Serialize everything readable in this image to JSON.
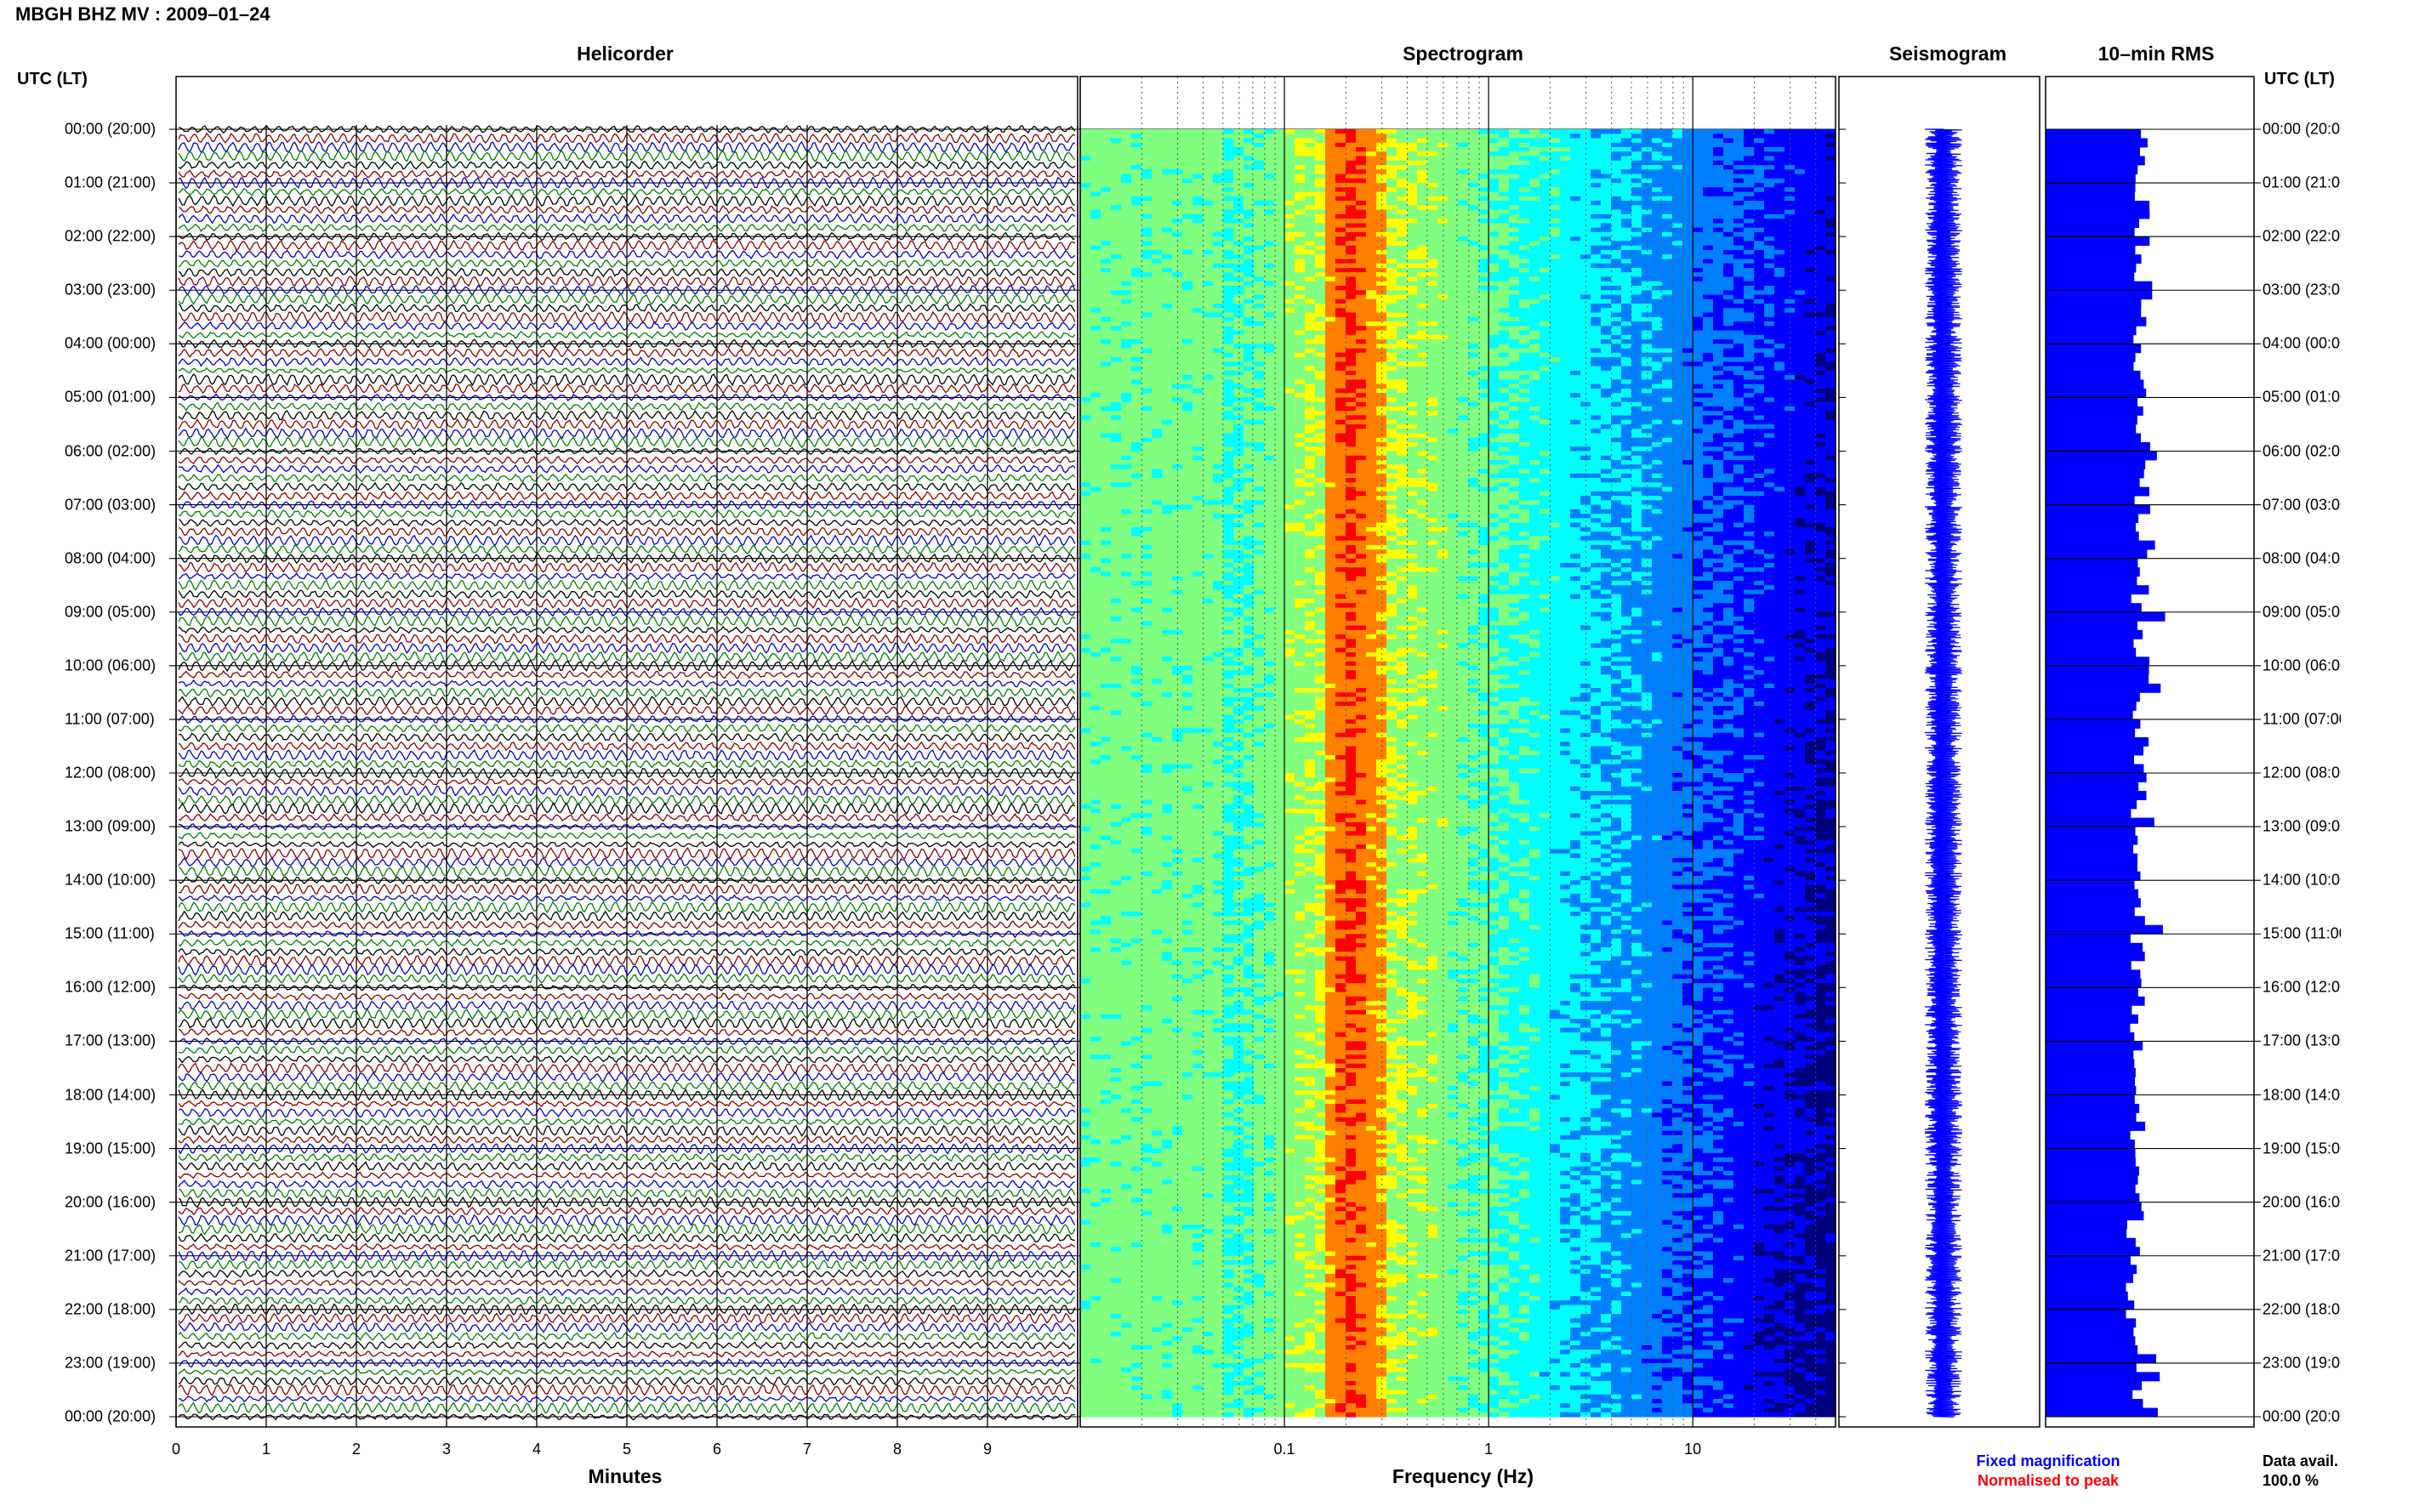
{
  "header": {
    "title": "MBGH BHZ MV : 2009–01–24"
  },
  "panels": {
    "helicorder": "Helicorder",
    "spectrogram": "Spectrogram",
    "seismogram": "Seismogram",
    "rms": "10–min RMS"
  },
  "axes": {
    "utc_left": "UTC (LT)",
    "utc_right": "UTC (LT)",
    "x_minutes_label": "Minutes",
    "x_frequency_label": "Frequency (Hz)"
  },
  "legend": {
    "fixed": "Fixed magnification",
    "normalised": "Normalised to peak",
    "fixed_color": "#0000ff",
    "normalised_color": "#ff0000"
  },
  "data_avail": {
    "label": "Data avail.",
    "value": "100.0 %"
  },
  "colors": {
    "trace_cycle": [
      "#000000",
      "#8b0000",
      "#0000cc",
      "#008000"
    ],
    "seismogram": "#0000ff",
    "rms_bar": "#0000ff"
  },
  "chart_data": [
    {
      "type": "line",
      "name": "helicorder",
      "title": "Helicorder",
      "xlabel": "Minutes",
      "x_ticks": [
        "0",
        "1",
        "2",
        "3",
        "4",
        "5",
        "6",
        "7",
        "8",
        "9"
      ],
      "xlim": [
        0,
        10
      ],
      "trace_interval_minutes": 10,
      "time_labels": [
        "00:00 (20:00)",
        "01:00 (21:00)",
        "02:00 (22:00)",
        "03:00 (23:00)",
        "04:00 (00:00)",
        "05:00 (01:00)",
        "06:00 (02:00)",
        "07:00 (03:00)",
        "08:00 (04:00)",
        "09:00 (05:00)",
        "10:00 (06:00)",
        "11:00 (07:00)",
        "12:00 (08:00)",
        "13:00 (09:00)",
        "14:00 (10:00)",
        "15:00 (11:00)",
        "16:00 (12:00)",
        "17:00 (13:00)",
        "18:00 (14:00)",
        "19:00 (15:00)",
        "20:00 (16:00)",
        "21:00 (17:00)",
        "22:00 (18:00)",
        "23:00 (19:00)",
        "00:00 (20:00)"
      ]
    },
    {
      "type": "heatmap",
      "name": "spectrogram",
      "title": "Spectrogram",
      "xlabel": "Frequency (Hz)",
      "x_scale": "log",
      "x_tick_labels": [
        "0.1",
        "1",
        "10"
      ],
      "xlim": [
        0.01,
        50
      ],
      "peak_band_hz": [
        0.15,
        0.3
      ],
      "colormap": [
        "#00007f",
        "#0000ff",
        "#0080ff",
        "#00ffff",
        "#80ff80",
        "#ffff00",
        "#ff8000",
        "#ff0000"
      ]
    },
    {
      "type": "line",
      "name": "seismogram",
      "title": "Seismogram",
      "y_span_hours": [
        0,
        24
      ]
    },
    {
      "type": "bar",
      "name": "rms",
      "title": "10–min RMS",
      "interval_minutes": 10
    }
  ]
}
